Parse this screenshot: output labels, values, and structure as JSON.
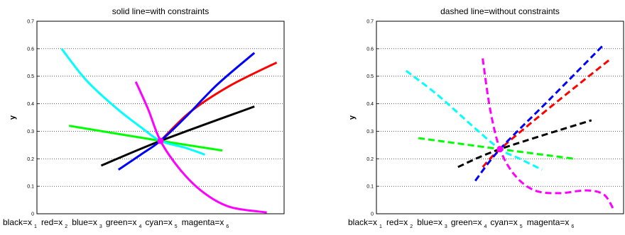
{
  "chart_data": [
    {
      "type": "line",
      "title": "solid line=with constraints",
      "ylabel": "y",
      "xlabel": "",
      "ylim": [
        0,
        0.7
      ],
      "yticks": [
        "0",
        "0.1",
        "0.2",
        "0.3",
        "0.4",
        "0.5",
        "0.6",
        "0.7"
      ],
      "grid": "y-dotted",
      "line_style": "solid",
      "legend_text": [
        "black=x",
        "1",
        "red=x",
        "2",
        "blue=x",
        "3",
        "green=x",
        "4",
        "cyan=x",
        "5",
        "magenta=x",
        "6"
      ],
      "intersection": {
        "x": 0.5,
        "y": 0.265,
        "color": "#ff00ff"
      },
      "series": [
        {
          "color": "#000000",
          "x": [
            0.26,
            0.5,
            0.88
          ],
          "y": [
            0.175,
            0.265,
            0.39
          ]
        },
        {
          "color": "#ff0000",
          "x": [
            0.5,
            0.62,
            0.78,
            0.97
          ],
          "y": [
            0.265,
            0.37,
            0.465,
            0.55
          ]
        },
        {
          "color": "#0000ff",
          "x": [
            0.33,
            0.42,
            0.5,
            0.6,
            0.73,
            0.88
          ],
          "y": [
            0.16,
            0.215,
            0.265,
            0.35,
            0.47,
            0.585
          ]
        },
        {
          "color": "#00ff00",
          "x": [
            0.13,
            0.5,
            0.75
          ],
          "y": [
            0.32,
            0.265,
            0.23
          ]
        },
        {
          "color": "#00ffff",
          "x": [
            0.1,
            0.2,
            0.32,
            0.42,
            0.5,
            0.6,
            0.68
          ],
          "y": [
            0.6,
            0.485,
            0.385,
            0.315,
            0.265,
            0.24,
            0.215
          ]
        },
        {
          "color": "#ff00ff",
          "x": [
            0.4,
            0.45,
            0.5,
            0.58,
            0.67,
            0.78,
            0.93
          ],
          "y": [
            0.48,
            0.38,
            0.265,
            0.16,
            0.08,
            0.025,
            0.005
          ]
        }
      ]
    },
    {
      "type": "line",
      "title": "dashed line=without constraints",
      "ylabel": "y",
      "xlabel": "",
      "ylim": [
        0,
        0.7
      ],
      "yticks": [
        "0",
        "0.1",
        "0.2",
        "0.3",
        "0.4",
        "0.5",
        "0.6",
        "0.7"
      ],
      "grid": "y-dotted",
      "line_style": "dashed",
      "legend_text": [
        "black=x",
        "1",
        "red=x",
        "2",
        "blue=x",
        "3",
        "green=x",
        "4",
        "cyan=x",
        "5",
        "magenta=x",
        "6"
      ],
      "intersection": {
        "x": 0.5,
        "y": 0.235,
        "color": "#ff00ff"
      },
      "series": [
        {
          "color": "#000000",
          "x": [
            0.33,
            0.5,
            0.87
          ],
          "y": [
            0.17,
            0.235,
            0.34
          ]
        },
        {
          "color": "#ff0000",
          "x": [
            0.43,
            0.5,
            0.7,
            0.95
          ],
          "y": [
            0.17,
            0.235,
            0.385,
            0.565
          ]
        },
        {
          "color": "#0000ff",
          "x": [
            0.4,
            0.5,
            0.7,
            0.92
          ],
          "y": [
            0.12,
            0.235,
            0.415,
            0.615
          ]
        },
        {
          "color": "#00ff00",
          "x": [
            0.17,
            0.5,
            0.8
          ],
          "y": [
            0.275,
            0.235,
            0.2
          ]
        },
        {
          "color": "#00ffff",
          "x": [
            0.12,
            0.25,
            0.4,
            0.5,
            0.58,
            0.67
          ],
          "y": [
            0.52,
            0.43,
            0.31,
            0.235,
            0.2,
            0.16
          ]
        },
        {
          "color": "#ff00ff",
          "x": [
            0.43,
            0.46,
            0.5,
            0.56,
            0.64,
            0.74,
            0.85,
            0.92,
            0.96
          ],
          "y": [
            0.565,
            0.38,
            0.235,
            0.14,
            0.085,
            0.075,
            0.085,
            0.07,
            0.015
          ]
        }
      ]
    }
  ]
}
